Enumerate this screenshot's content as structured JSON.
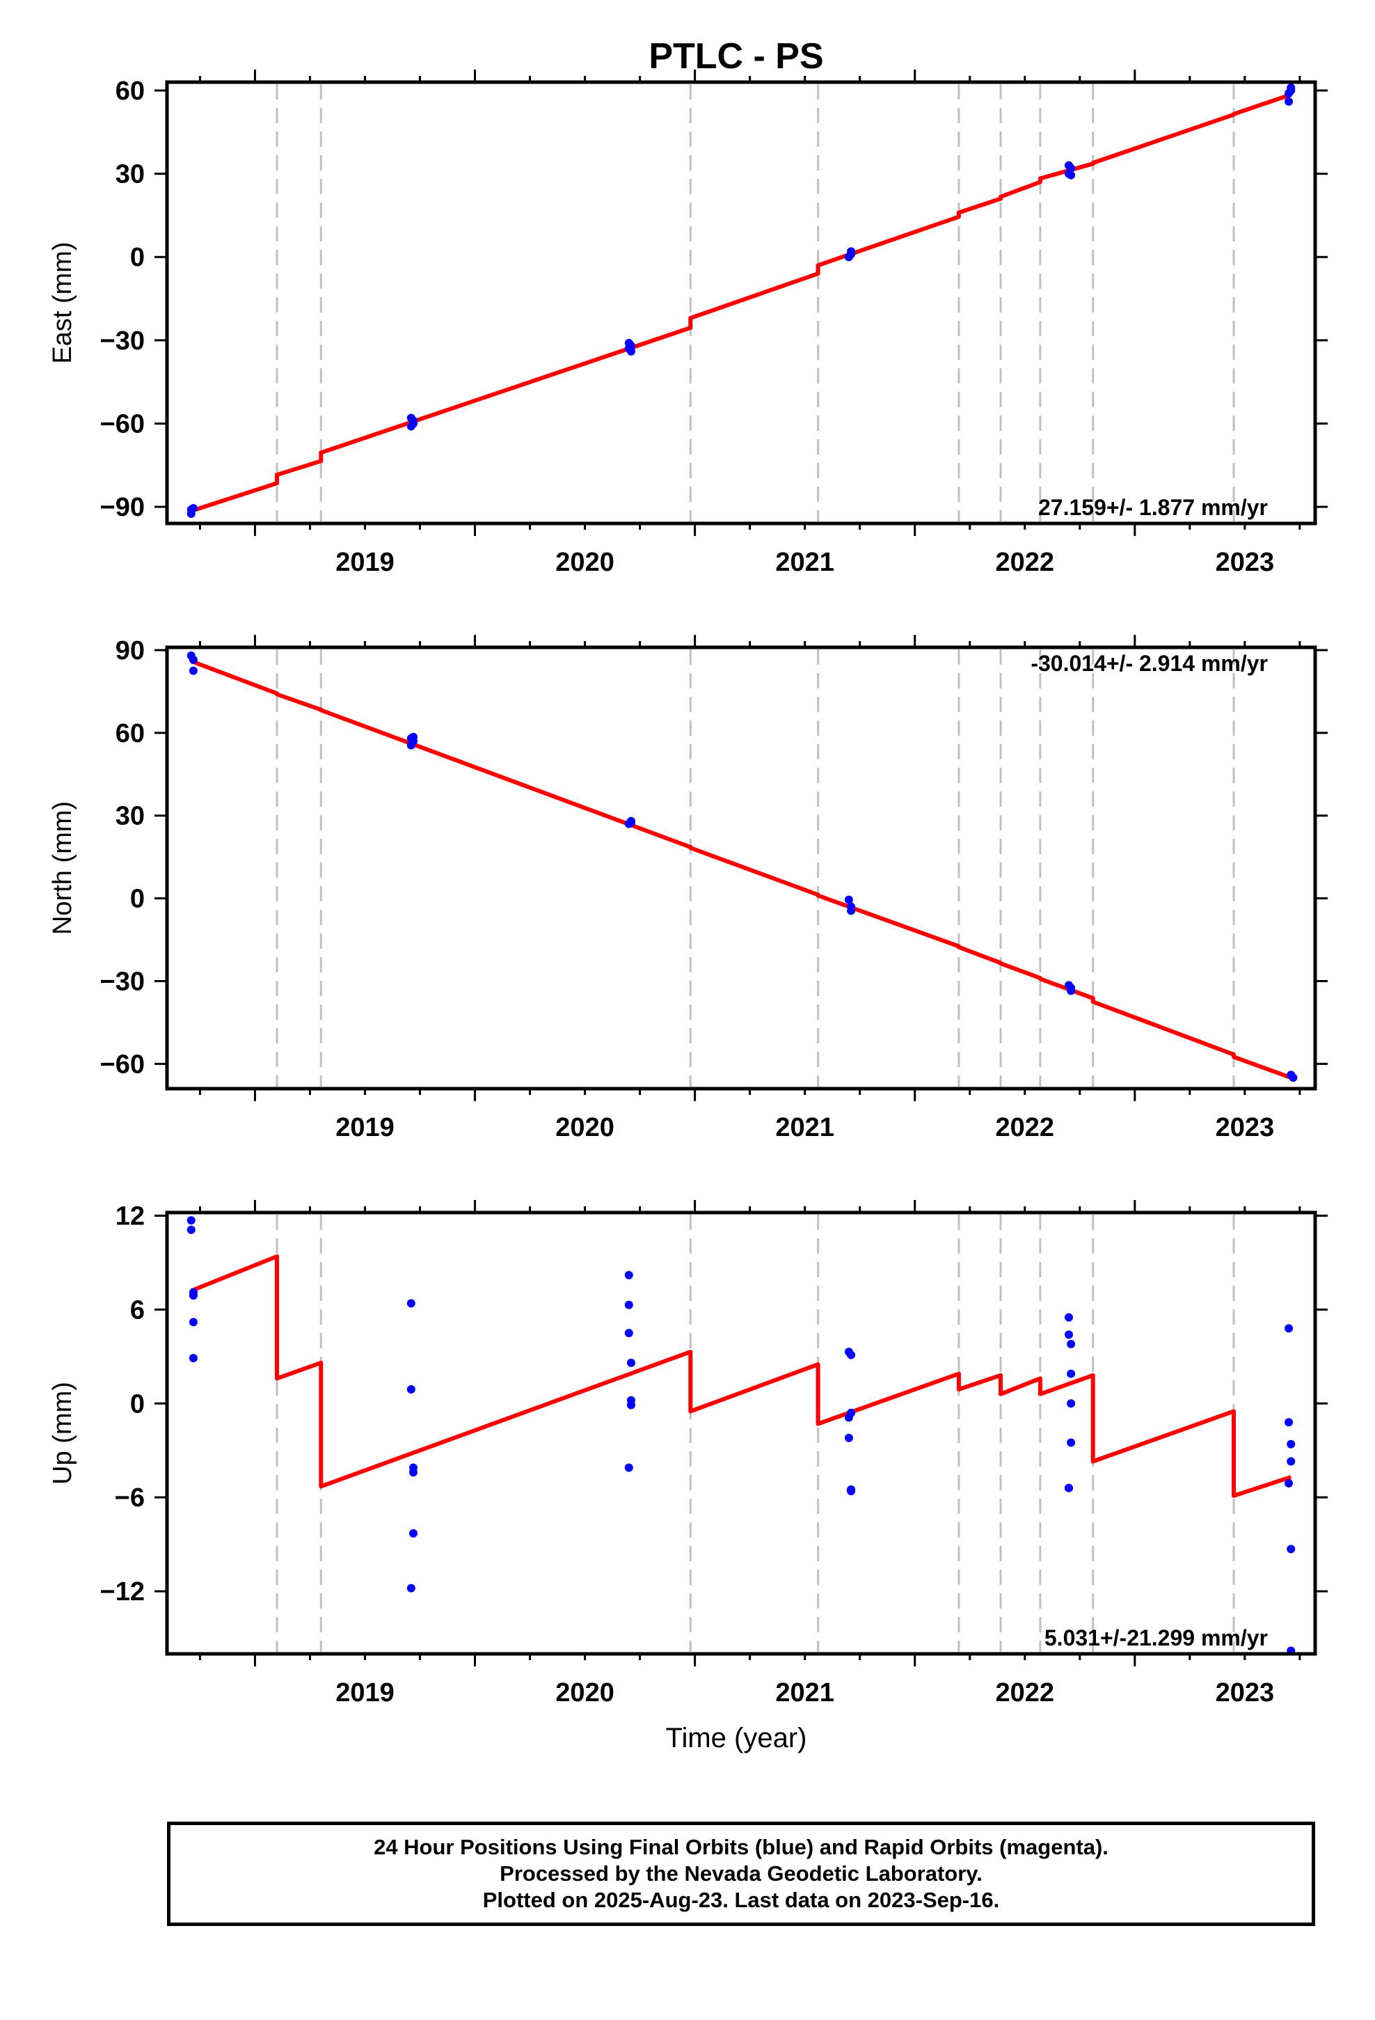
{
  "title": "PTLC - PS",
  "xlabel": "Time (year)",
  "caption": {
    "line1": "24 Hour Positions Using Final Orbits (blue) and Rapid Orbits (magenta).",
    "line2": "Processed by the Nevada Geodetic Laboratory.",
    "line3": "Plotted on 2025-Aug-23. Last data on 2023-Sep-16."
  },
  "colors": {
    "model_line": "#ff0000",
    "final_orbit_points": "#0000ff",
    "break_lines": "#c0c0c0",
    "frame": "#000000"
  },
  "chart_data": [
    {
      "type": "scatter",
      "panel": "east",
      "ylabel": "East (mm)",
      "ylim": [
        -96,
        63
      ],
      "xlim": [
        2018.6,
        2023.82
      ],
      "x_tick_labels": [
        "2019",
        "2020",
        "2021",
        "2022",
        "2023"
      ],
      "y_tick_labels": [
        "−90",
        "−60",
        "−30",
        "0",
        "30",
        "60"
      ],
      "y_ticks": [
        -90,
        -60,
        -30,
        0,
        30,
        60
      ],
      "rate_label": "27.159+/- 1.877 mm/yr",
      "rate_position": "bottom-right",
      "grid": false,
      "break_years": [
        2019.1,
        2019.3,
        2020.98,
        2021.56,
        2022.2,
        2022.39,
        2022.57,
        2022.81,
        2023.45
      ],
      "series": [
        {
          "kind": "points",
          "x": [
            2018.71,
            2018.71,
            2018.72,
            2019.71,
            2019.71,
            2019.72,
            2019.72,
            2020.7,
            2020.7,
            2020.71,
            2020.71,
            2021.7,
            2021.71,
            2021.71,
            2022.7,
            2022.7,
            2022.71,
            2022.71,
            2023.7,
            2023.7,
            2023.71,
            2023.71
          ],
          "y": [
            -91,
            -92.5,
            -90.5,
            -58,
            -61,
            -60,
            -59,
            -33,
            -31,
            -34,
            -32,
            0,
            1,
            2,
            33,
            30,
            32,
            29.5,
            56,
            59,
            61,
            60
          ]
        },
        {
          "kind": "line",
          "x": [
            2018.71,
            2019.1,
            2019.1,
            2019.3,
            2019.3,
            2020.98,
            2020.98,
            2021.56,
            2021.56,
            2022.2,
            2022.2,
            2022.39,
            2022.39,
            2022.57,
            2022.57,
            2022.81,
            2022.81,
            2023.45,
            2023.45,
            2023.71
          ],
          "y": [
            -91.5,
            -81.5,
            -78.5,
            -73.5,
            -70.5,
            -25.5,
            -22,
            -6,
            -3,
            14.5,
            16,
            21,
            21.7,
            27,
            28.3,
            33.6,
            33.9,
            51.3,
            51.5,
            58.5
          ]
        }
      ]
    },
    {
      "type": "scatter",
      "panel": "north",
      "ylabel": "North (mm)",
      "ylim": [
        -69,
        91
      ],
      "xlim": [
        2018.6,
        2023.82
      ],
      "x_tick_labels": [
        "2019",
        "2020",
        "2021",
        "2022",
        "2023"
      ],
      "y_tick_labels": [
        "−60",
        "−30",
        "0",
        "30",
        "60",
        "90"
      ],
      "y_ticks": [
        -60,
        -30,
        0,
        30,
        60,
        90
      ],
      "rate_label": "-30.014+/- 2.914 mm/yr",
      "rate_position": "top-right",
      "grid": false,
      "break_years": [
        2019.1,
        2019.3,
        2020.98,
        2021.56,
        2022.2,
        2022.39,
        2022.57,
        2022.81,
        2023.45
      ],
      "series": [
        {
          "kind": "points",
          "x": [
            2018.71,
            2018.72,
            2018.72,
            2019.71,
            2019.72,
            2019.71,
            2019.72,
            2020.7,
            2020.71,
            2020.71,
            2021.7,
            2021.71,
            2021.71,
            2022.7,
            2022.71,
            2022.71,
            2023.71,
            2023.72
          ],
          "y": [
            88,
            86.5,
            82.5,
            58,
            58.5,
            55.5,
            57,
            27,
            28,
            27.5,
            -0.5,
            -3,
            -4.5,
            -31.5,
            -33.5,
            -32.5,
            -64,
            -65
          ]
        },
        {
          "kind": "line",
          "x": [
            2018.71,
            2019.1,
            2019.1,
            2019.3,
            2019.3,
            2020.98,
            2020.98,
            2021.56,
            2021.56,
            2022.2,
            2022.2,
            2022.39,
            2022.39,
            2022.57,
            2022.57,
            2022.81,
            2022.81,
            2023.45,
            2023.45,
            2023.71
          ],
          "y": [
            86,
            74.3,
            74,
            68.4,
            68.2,
            18.6,
            18.3,
            1.3,
            1.0,
            -17.4,
            -17.7,
            -23.4,
            -23.6,
            -28.9,
            -29.2,
            -36.2,
            -37.5,
            -56.6,
            -57.5,
            -65
          ]
        }
      ]
    },
    {
      "type": "scatter",
      "panel": "up",
      "ylabel": "Up (mm)",
      "ylim": [
        -16,
        12.2
      ],
      "xlim": [
        2018.6,
        2023.82
      ],
      "x_tick_labels": [
        "2019",
        "2020",
        "2021",
        "2022",
        "2023"
      ],
      "y_tick_labels": [
        "−12",
        "−6",
        "0",
        "6",
        "12"
      ],
      "y_ticks": [
        -12,
        -6,
        0,
        6,
        12
      ],
      "rate_label": "5.031+/-21.299 mm/yr",
      "rate_position": "bottom-right",
      "grid": false,
      "break_years": [
        2019.1,
        2019.3,
        2020.98,
        2021.56,
        2022.2,
        2022.39,
        2022.57,
        2022.81,
        2023.45
      ],
      "series": [
        {
          "kind": "points",
          "x": [
            2018.71,
            2018.71,
            2018.72,
            2018.72,
            2018.72,
            2018.72,
            2019.71,
            2019.71,
            2019.72,
            2019.72,
            2019.72,
            2019.71,
            2020.7,
            2020.7,
            2020.7,
            2020.71,
            2020.71,
            2020.71,
            2020.7,
            2021.7,
            2021.71,
            2021.71,
            2021.7,
            2021.7,
            2021.71,
            2021.71,
            2022.7,
            2022.7,
            2022.71,
            2022.71,
            2022.71,
            2022.71,
            2022.7,
            2022.7,
            2023.7,
            2023.7,
            2023.71,
            2023.71,
            2023.7,
            2023.71,
            2023.71
          ],
          "y": [
            11.7,
            11.1,
            7.1,
            6.9,
            5.2,
            2.9,
            6.4,
            0.9,
            -4.1,
            -4.4,
            -8.3,
            -11.8,
            8.2,
            6.3,
            4.5,
            2.6,
            0.2,
            -0.1,
            -4.1,
            3.3,
            3.1,
            -0.6,
            -0.9,
            -2.2,
            -5.6,
            -5.5,
            5.5,
            4.4,
            3.8,
            1.9,
            0.0,
            -2.5,
            -5.4,
            -5.4,
            4.8,
            -1.2,
            -2.6,
            -3.7,
            -5.1,
            -9.3,
            -15.8
          ]
        },
        {
          "kind": "line",
          "x": [
            2018.71,
            2019.1,
            2019.1,
            2019.3,
            2019.3,
            2020.98,
            2020.98,
            2021.56,
            2021.56,
            2022.2,
            2022.2,
            2022.39,
            2022.39,
            2022.57,
            2022.57,
            2022.81,
            2022.81,
            2023.45,
            2023.45,
            2023.71
          ],
          "y": [
            7.2,
            9.4,
            1.6,
            2.6,
            -5.3,
            3.3,
            -0.5,
            2.5,
            -1.3,
            1.9,
            0.9,
            1.8,
            0.6,
            1.6,
            0.6,
            1.8,
            -3.7,
            -0.5,
            -5.9,
            -4.7
          ]
        }
      ]
    }
  ]
}
